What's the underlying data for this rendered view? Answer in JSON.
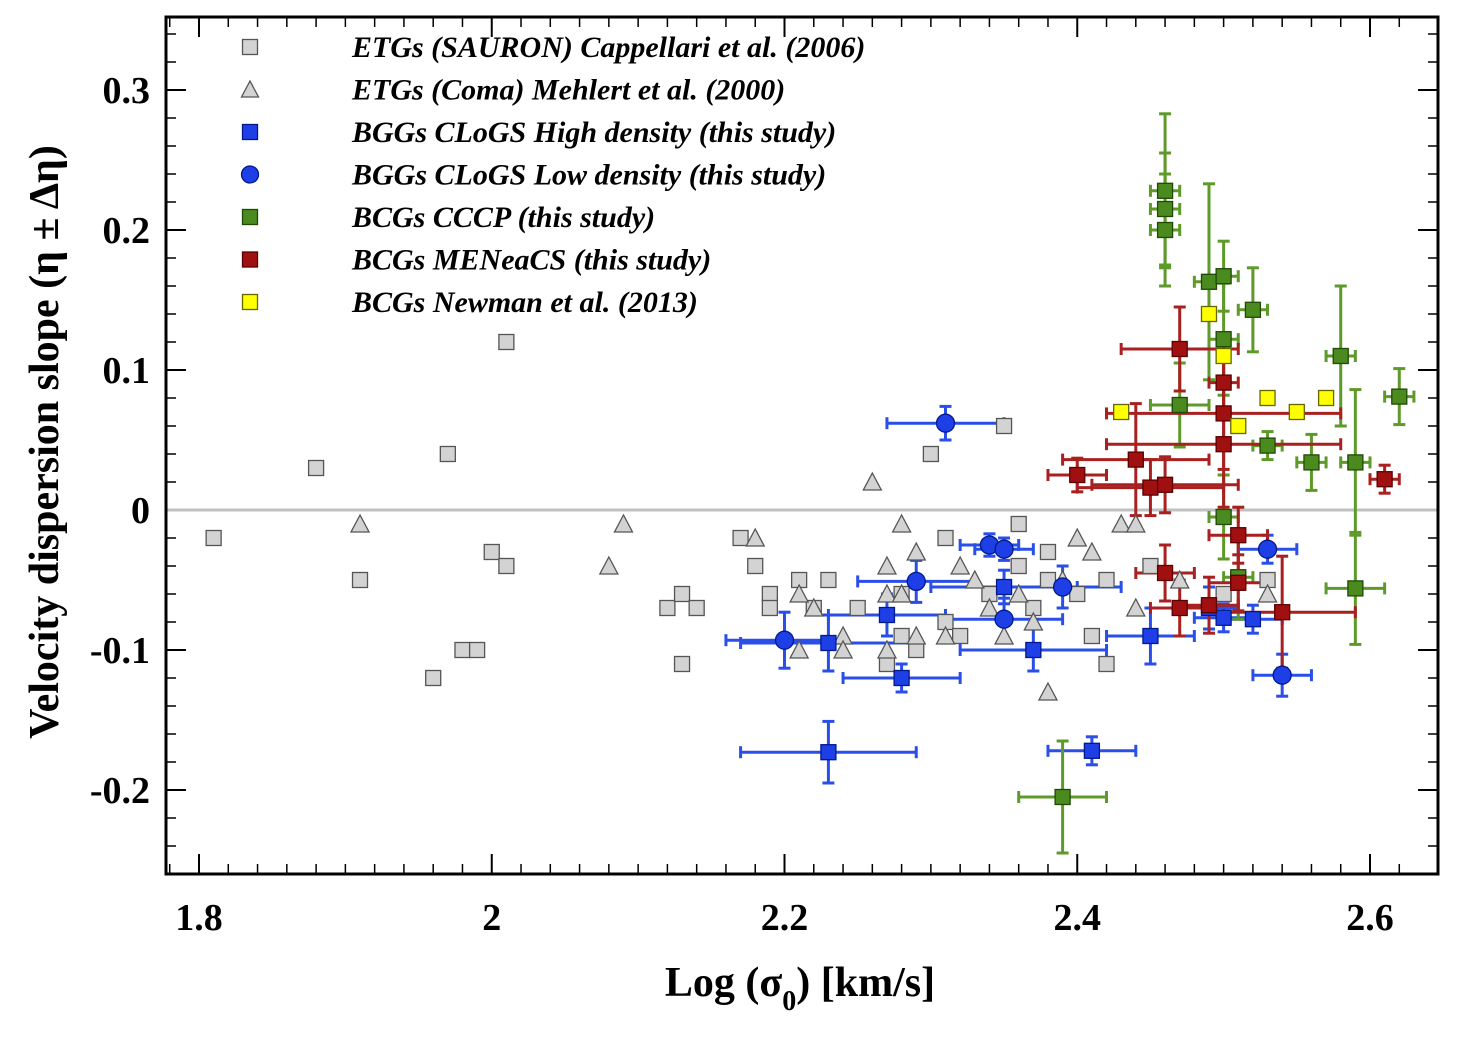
{
  "chart_data": {
    "type": "scatter",
    "title": "",
    "xlabel": "Log (σ",
    "xlabel_sub": "0",
    "xlabel_tail": ") [km/s]",
    "ylabel": "Velocity dispersion slope  (η ± Δη)",
    "xlim": [
      1.79,
      2.635
    ],
    "ylim": [
      -0.26,
      0.35
    ],
    "x_ticks": [
      1.8,
      2.0,
      2.2,
      2.4,
      2.6
    ],
    "x_tick_labels": [
      "1.8",
      "2",
      "2.2",
      "2.4",
      "2.6"
    ],
    "y_ticks": [
      0.3,
      0.2,
      0.1,
      0.0,
      -0.1,
      -0.2
    ],
    "y_tick_labels": [
      "0.3",
      "0.2",
      "0.1",
      "0",
      "-0.1",
      "-0.2"
    ],
    "reference_line_y": 0,
    "grid": false,
    "legend_position": "top-left",
    "series": [
      {
        "name": "ETGs (SAURON) Cappellari et al. (2006)",
        "marker": "square",
        "color": "#d3d3d3",
        "edge": "#555555",
        "points": [
          [
            1.81,
            -0.02
          ],
          [
            1.88,
            0.03
          ],
          [
            1.91,
            -0.05
          ],
          [
            1.96,
            -0.12
          ],
          [
            1.97,
            0.04
          ],
          [
            1.98,
            -0.1
          ],
          [
            1.99,
            -0.1
          ],
          [
            2.0,
            -0.03
          ],
          [
            2.01,
            -0.04
          ],
          [
            2.01,
            0.12
          ],
          [
            2.12,
            -0.07
          ],
          [
            2.13,
            -0.06
          ],
          [
            2.13,
            -0.11
          ],
          [
            2.14,
            -0.07
          ],
          [
            2.17,
            -0.02
          ],
          [
            2.18,
            -0.04
          ],
          [
            2.19,
            -0.06
          ],
          [
            2.19,
            -0.07
          ],
          [
            2.21,
            -0.05
          ],
          [
            2.22,
            -0.07
          ],
          [
            2.23,
            -0.05
          ],
          [
            2.25,
            -0.07
          ],
          [
            2.27,
            -0.11
          ],
          [
            2.28,
            -0.09
          ],
          [
            2.28,
            -0.06
          ],
          [
            2.29,
            -0.1
          ],
          [
            2.3,
            0.04
          ],
          [
            2.31,
            -0.02
          ],
          [
            2.31,
            -0.08
          ],
          [
            2.32,
            -0.09
          ],
          [
            2.34,
            -0.06
          ],
          [
            2.35,
            0.06
          ],
          [
            2.36,
            -0.01
          ],
          [
            2.36,
            -0.04
          ],
          [
            2.37,
            -0.07
          ],
          [
            2.38,
            -0.03
          ],
          [
            2.38,
            -0.05
          ],
          [
            2.4,
            -0.06
          ],
          [
            2.42,
            -0.05
          ],
          [
            2.41,
            -0.09
          ],
          [
            2.42,
            -0.11
          ],
          [
            2.45,
            -0.04
          ],
          [
            2.5,
            -0.06
          ],
          [
            2.51,
            -0.05
          ],
          [
            2.53,
            -0.05
          ]
        ]
      },
      {
        "name": "ETGs (Coma) Mehlert et al. (2000)",
        "marker": "triangle",
        "color": "#d3d3d3",
        "edge": "#555555",
        "points": [
          [
            1.91,
            -0.01
          ],
          [
            2.08,
            -0.04
          ],
          [
            2.09,
            -0.01
          ],
          [
            2.18,
            -0.02
          ],
          [
            2.21,
            -0.06
          ],
          [
            2.21,
            -0.1
          ],
          [
            2.22,
            -0.07
          ],
          [
            2.24,
            -0.09
          ],
          [
            2.24,
            -0.1
          ],
          [
            2.26,
            0.02
          ],
          [
            2.27,
            -0.04
          ],
          [
            2.27,
            -0.06
          ],
          [
            2.27,
            -0.1
          ],
          [
            2.28,
            -0.01
          ],
          [
            2.28,
            -0.06
          ],
          [
            2.29,
            -0.03
          ],
          [
            2.29,
            -0.09
          ],
          [
            2.31,
            -0.09
          ],
          [
            2.32,
            -0.04
          ],
          [
            2.33,
            -0.05
          ],
          [
            2.34,
            -0.07
          ],
          [
            2.35,
            -0.09
          ],
          [
            2.36,
            -0.06
          ],
          [
            2.37,
            -0.08
          ],
          [
            2.38,
            -0.13
          ],
          [
            2.39,
            -0.05
          ],
          [
            2.4,
            -0.02
          ],
          [
            2.41,
            -0.03
          ],
          [
            2.43,
            -0.01
          ],
          [
            2.44,
            -0.01
          ],
          [
            2.44,
            -0.07
          ],
          [
            2.47,
            -0.05
          ],
          [
            2.53,
            -0.06
          ]
        ]
      },
      {
        "name": "BGGs CLoGS High density (this study)",
        "marker": "square",
        "color": "#1f3fe6",
        "edge": "#001a8c",
        "errcolor": "#2a4fe8",
        "points": [
          [
            2.23,
            -0.095,
            0.06,
            0.02
          ],
          [
            2.23,
            -0.173,
            0.06,
            0.022
          ],
          [
            2.27,
            -0.075,
            0.04,
            0.015
          ],
          [
            2.28,
            -0.12,
            0.04,
            0.01
          ],
          [
            2.35,
            -0.055,
            0.05,
            0.012
          ],
          [
            2.37,
            -0.1,
            0.05,
            0.015
          ],
          [
            2.41,
            -0.172,
            0.03,
            0.01
          ],
          [
            2.45,
            -0.09,
            0.03,
            0.02
          ],
          [
            2.49,
            -0.07,
            0.02,
            0.015
          ],
          [
            2.5,
            -0.077,
            0.02,
            0.01
          ],
          [
            2.52,
            -0.078,
            0.02,
            0.01
          ]
        ]
      },
      {
        "name": "BGGs CLoGS Low density (this study)",
        "marker": "circle",
        "color": "#1f3fe6",
        "edge": "#001a8c",
        "errcolor": "#2a4fe8",
        "points": [
          [
            2.2,
            -0.093,
            0.04,
            0.02
          ],
          [
            2.29,
            -0.051,
            0.04,
            0.015
          ],
          [
            2.31,
            0.062,
            0.04,
            0.012
          ],
          [
            2.34,
            -0.025,
            0.02,
            0.008
          ],
          [
            2.35,
            -0.028,
            0.02,
            0.008
          ],
          [
            2.35,
            -0.078,
            0.04,
            0.015
          ],
          [
            2.39,
            -0.055,
            0.04,
            0.015
          ],
          [
            2.53,
            -0.028,
            0.02,
            0.01
          ],
          [
            2.54,
            -0.118,
            0.02,
            0.015
          ]
        ]
      },
      {
        "name": "BCGs CCCP (this study)",
        "marker": "square",
        "color": "#4a8a1f",
        "edge": "#1f4a05",
        "errcolor": "#5e9a2a",
        "points": [
          [
            2.39,
            -0.205,
            0.03,
            0.04
          ],
          [
            2.46,
            0.2,
            0.01,
            0.04
          ],
          [
            2.46,
            0.215,
            0.01,
            0.04
          ],
          [
            2.46,
            0.228,
            0.01,
            0.055
          ],
          [
            2.47,
            0.075,
            0.02,
            0.03
          ],
          [
            2.49,
            0.163,
            0.01,
            0.07
          ],
          [
            2.5,
            0.122,
            0.01,
            0.04
          ],
          [
            2.5,
            0.167,
            0.01,
            0.025
          ],
          [
            2.5,
            -0.005,
            0.01,
            0.03
          ],
          [
            2.51,
            -0.048,
            0.01,
            0.03
          ],
          [
            2.52,
            0.143,
            0.01,
            0.03
          ],
          [
            2.53,
            0.046,
            0.01,
            0.01
          ],
          [
            2.56,
            0.034,
            0.01,
            0.02
          ],
          [
            2.58,
            0.11,
            0.01,
            0.05
          ],
          [
            2.59,
            0.034,
            0.01,
            0.052
          ],
          [
            2.59,
            -0.056,
            0.02,
            0.04
          ],
          [
            2.62,
            0.081,
            0.01,
            0.02
          ]
        ]
      },
      {
        "name": "BCGs MENeaCS (this study)",
        "marker": "square",
        "color": "#a01010",
        "edge": "#5a0000",
        "errcolor": "#a82020",
        "points": [
          [
            2.4,
            0.025,
            0.02,
            0.012
          ],
          [
            2.44,
            0.036,
            0.05,
            0.04
          ],
          [
            2.45,
            0.016,
            0.05,
            0.02
          ],
          [
            2.46,
            0.018,
            0.05,
            0.02
          ],
          [
            2.46,
            -0.045,
            0.02,
            0.02
          ],
          [
            2.47,
            0.115,
            0.04,
            0.03
          ],
          [
            2.47,
            -0.07,
            0.02,
            0.02
          ],
          [
            2.49,
            -0.068,
            0.02,
            0.02
          ],
          [
            2.5,
            0.069,
            0.08,
            0.04
          ],
          [
            2.5,
            0.047,
            0.08,
            0.045
          ],
          [
            2.5,
            0.091,
            0.01,
            0.02
          ],
          [
            2.51,
            -0.018,
            0.02,
            0.02
          ],
          [
            2.51,
            -0.052,
            0.02,
            0.02
          ],
          [
            2.54,
            -0.073,
            0.05,
            0.04
          ],
          [
            2.61,
            0.022,
            0.01,
            0.01
          ]
        ]
      },
      {
        "name": "BCGs Newman et al. (2013)",
        "marker": "square",
        "color": "#ffff00",
        "edge": "#666600",
        "points": [
          [
            2.43,
            0.07
          ],
          [
            2.49,
            0.14
          ],
          [
            2.5,
            0.11
          ],
          [
            2.51,
            0.06
          ],
          [
            2.53,
            0.08
          ],
          [
            2.55,
            0.07
          ],
          [
            2.57,
            0.08
          ]
        ]
      }
    ]
  }
}
